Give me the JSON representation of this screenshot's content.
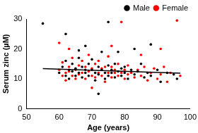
{
  "chart_data": {
    "type": "scatter",
    "x_label": "Age (years)",
    "y_label": "Serum zinc (µM)",
    "xlim": [
      50,
      100
    ],
    "xticks": [
      50,
      60,
      70,
      80,
      90,
      100
    ],
    "ylim": [
      0,
      30
    ],
    "yticks": [
      0,
      10,
      20,
      30
    ],
    "grid": false,
    "legend": "upper right",
    "series": [
      {
        "name": "Male",
        "color": "#000000",
        "marker": "circle",
        "x": [
          55,
          60,
          61,
          62,
          62,
          63,
          63,
          64,
          64,
          65,
          65,
          66,
          66,
          67,
          67,
          68,
          68,
          69,
          69,
          70,
          70,
          71,
          71,
          72,
          72,
          73,
          73,
          74,
          74,
          75,
          75,
          76,
          76,
          77,
          77,
          78,
          79,
          79,
          80,
          80,
          81,
          82,
          83,
          84,
          85,
          86,
          87,
          88,
          90,
          91,
          93,
          95,
          96,
          72,
          75,
          62,
          68,
          83,
          88,
          78,
          66
        ],
        "values": [
          28.5,
          12,
          14,
          11,
          16,
          13,
          10,
          12.5,
          15,
          11,
          13.5,
          12,
          17,
          14,
          10.5,
          13,
          12,
          15,
          11,
          13,
          16.5,
          12,
          9.5,
          14,
          11.5,
          13,
          19,
          12,
          10,
          14.5,
          11,
          13,
          12,
          15,
          10.5,
          12.5,
          13.5,
          11,
          12,
          14,
          10,
          13,
          11.5,
          12.5,
          15,
          10.5,
          12,
          11,
          13,
          9,
          12,
          11.5,
          10,
          5,
          29,
          25,
          21,
          20,
          21.5,
          19,
          19.5
        ]
      },
      {
        "name": "Female",
        "color": "#ff0000",
        "marker": "circle",
        "x": [
          60,
          61,
          61,
          62,
          62,
          63,
          63,
          64,
          64,
          65,
          65,
          66,
          66,
          67,
          67,
          68,
          68,
          69,
          69,
          70,
          70,
          71,
          71,
          72,
          72,
          73,
          73,
          74,
          74,
          75,
          75,
          76,
          76,
          77,
          77,
          78,
          78,
          79,
          80,
          80,
          81,
          81,
          82,
          83,
          84,
          85,
          86,
          87,
          88,
          89,
          90,
          91,
          92,
          93,
          94,
          96,
          97,
          79,
          60,
          63,
          76,
          85,
          70,
          91
        ],
        "values": [
          13,
          11,
          15.5,
          12,
          9.5,
          14,
          12.5,
          11,
          17,
          13,
          10,
          14.5,
          11.5,
          12,
          16,
          10,
          14,
          12.5,
          18,
          11,
          13.5,
          15,
          10.5,
          12,
          16,
          11,
          13.5,
          14,
          9,
          12,
          17.5,
          10.5,
          14,
          12,
          13,
          11,
          15,
          12,
          10,
          13,
          14.5,
          11.5,
          12,
          10.5,
          13,
          11,
          14,
          9.5,
          12,
          13.5,
          10,
          11.5,
          14,
          9,
          12,
          29.5,
          11,
          29,
          22,
          20,
          21,
          18,
          7,
          20
        ]
      },
      {
        "type": "line",
        "color": "#000000",
        "line_style": "solid",
        "x": [
          55,
          97
        ],
        "values": [
          13.4,
          11.9
        ]
      }
    ]
  }
}
